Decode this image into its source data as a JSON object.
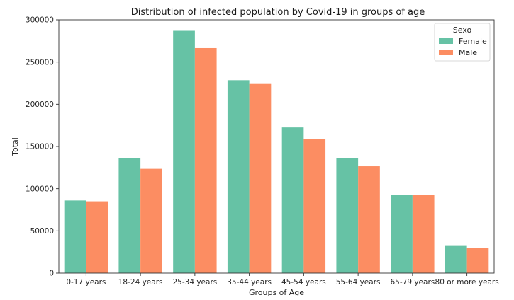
{
  "chart_data": {
    "type": "bar",
    "title": "Distribution of infected population by Covid-19 in groups of age",
    "xlabel": "Groups of Age",
    "ylabel": "Total",
    "ylim": [
      0,
      300000
    ],
    "yticks": [
      "0",
      "50000",
      "100000",
      "150000",
      "200000",
      "250000",
      "300000"
    ],
    "categories": [
      "0-17 years",
      "18-24 years",
      "25-34 years",
      "35-44 years",
      "45-54 years",
      "55-64 years",
      "65-79 years",
      "80 or more years"
    ],
    "series": [
      {
        "name": "Female",
        "color": "#66c2a5",
        "values": [
          86000,
          136500,
          287000,
          228500,
          172500,
          136500,
          93000,
          33000
        ]
      },
      {
        "name": "Male",
        "color": "#fc8d62",
        "values": [
          85000,
          123500,
          266500,
          224000,
          158500,
          126500,
          93000,
          29500
        ]
      }
    ],
    "legend": {
      "title": "Sexo",
      "placement": "top-right"
    },
    "grid": false
  }
}
